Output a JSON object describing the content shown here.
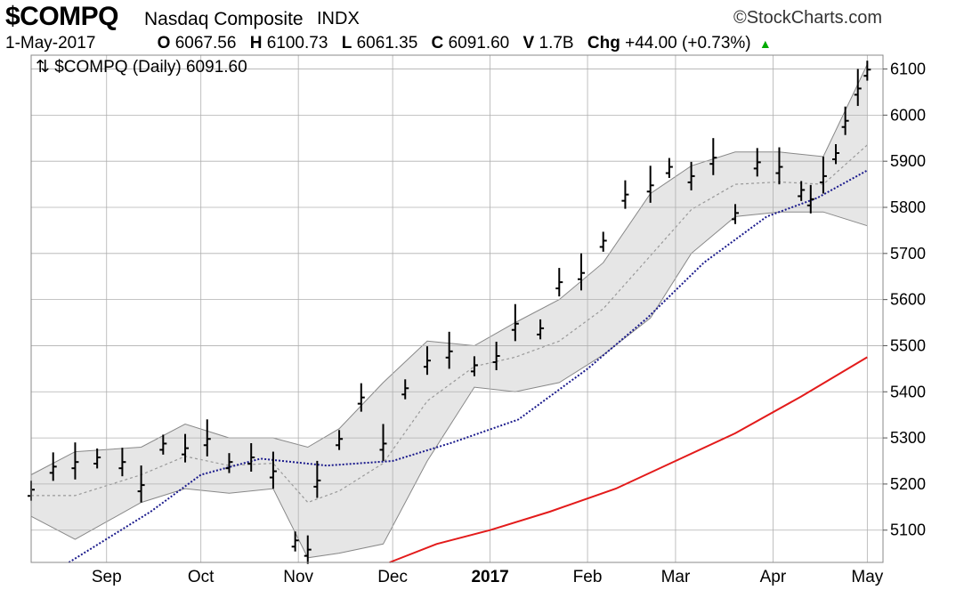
{
  "header": {
    "symbol": "$COMPQ",
    "name": "Nasdaq Composite",
    "exchange": "INDX",
    "brand": "©StockCharts.com",
    "date": "1-May-2017",
    "open_label": "O",
    "open": "6067.56",
    "high_label": "H",
    "high": "6100.73",
    "low_label": "L",
    "low": "6061.35",
    "close_label": "C",
    "close": "6091.60",
    "volume_label": "V",
    "volume": "1.7B",
    "change_label": "Chg",
    "change": "+44.00 (+0.73%)",
    "change_arrow": "▲"
  },
  "colors": {
    "price_bars": "#000000",
    "bands": "#888888",
    "band_fill": "#e6e6e6",
    "ma50": "#1a1a8c",
    "ma200": "#e31b1b",
    "grid": "#b0b0b0",
    "up_arrow": "#00aa00"
  },
  "chart_data": {
    "type": "line",
    "title": "$COMPQ (Daily) 6091.60",
    "legend_label": "$COMPQ (Daily) 6091.60",
    "ylim": [
      5030,
      6130
    ],
    "yticks": [
      5100,
      5200,
      5300,
      5400,
      5500,
      5600,
      5700,
      5800,
      5900,
      6000,
      6100
    ],
    "xlabels": [
      {
        "label": "Sep",
        "date": "2016-09-01"
      },
      {
        "label": "Oct",
        "date": "2016-10-01"
      },
      {
        "label": "Nov",
        "date": "2016-11-01"
      },
      {
        "label": "Dec",
        "date": "2016-12-01"
      },
      {
        "label": "2017",
        "date": "2017-01-01",
        "bold": true
      },
      {
        "label": "Feb",
        "date": "2017-02-01"
      },
      {
        "label": "Mar",
        "date": "2017-03-01"
      },
      {
        "label": "Apr",
        "date": "2017-04-01"
      },
      {
        "label": "May",
        "date": "2017-05-01"
      }
    ],
    "xrange": [
      "2016-08-08",
      "2017-05-06"
    ],
    "price_series": {
      "name": "$COMPQ",
      "x": [
        "2016-08-08",
        "2016-08-15",
        "2016-08-22",
        "2016-08-29",
        "2016-09-06",
        "2016-09-12",
        "2016-09-19",
        "2016-09-26",
        "2016-10-03",
        "2016-10-10",
        "2016-10-17",
        "2016-10-24",
        "2016-10-31",
        "2016-11-04",
        "2016-11-07",
        "2016-11-14",
        "2016-11-21",
        "2016-11-28",
        "2016-12-05",
        "2016-12-12",
        "2016-12-19",
        "2016-12-27",
        "2017-01-03",
        "2017-01-09",
        "2017-01-17",
        "2017-01-23",
        "2017-01-30",
        "2017-02-06",
        "2017-02-13",
        "2017-02-21",
        "2017-02-27",
        "2017-03-06",
        "2017-03-13",
        "2017-03-20",
        "2017-03-27",
        "2017-04-03",
        "2017-04-10",
        "2017-04-13",
        "2017-04-17",
        "2017-04-21",
        "2017-04-24",
        "2017-04-28",
        "2017-05-01"
      ],
      "values": [
        5180,
        5230,
        5240,
        5250,
        5240,
        5190,
        5280,
        5270,
        5290,
        5240,
        5250,
        5220,
        5070,
        5050,
        5200,
        5290,
        5380,
        5280,
        5400,
        5460,
        5480,
        5450,
        5470,
        5540,
        5530,
        5630,
        5650,
        5720,
        5820,
        5840,
        5880,
        5860,
        5900,
        5780,
        5890,
        5880,
        5830,
        5810,
        5860,
        5910,
        5980,
        6050,
        6091
      ]
    },
    "bands_upper": {
      "name": "Bollinger upper",
      "x": [
        "2016-08-08",
        "2016-08-22",
        "2016-09-12",
        "2016-09-26",
        "2016-10-10",
        "2016-10-24",
        "2016-11-04",
        "2016-11-14",
        "2016-11-28",
        "2016-12-12",
        "2016-12-27",
        "2017-01-09",
        "2017-01-23",
        "2017-02-06",
        "2017-02-21",
        "2017-03-06",
        "2017-03-20",
        "2017-04-03",
        "2017-04-17",
        "2017-05-01"
      ],
      "values": [
        5220,
        5270,
        5280,
        5330,
        5300,
        5300,
        5280,
        5320,
        5420,
        5510,
        5500,
        5550,
        5600,
        5680,
        5830,
        5890,
        5920,
        5920,
        5910,
        6110
      ]
    },
    "bands_lower": {
      "name": "Bollinger lower",
      "x": [
        "2016-08-08",
        "2016-08-22",
        "2016-09-12",
        "2016-09-26",
        "2016-10-10",
        "2016-10-24",
        "2016-11-04",
        "2016-11-14",
        "2016-11-28",
        "2016-12-12",
        "2016-12-27",
        "2017-01-09",
        "2017-01-23",
        "2017-02-06",
        "2017-02-21",
        "2017-03-06",
        "2017-03-20",
        "2017-04-03",
        "2017-04-17",
        "2017-05-01"
      ],
      "values": [
        5130,
        5080,
        5160,
        5190,
        5180,
        5190,
        5040,
        5050,
        5070,
        5250,
        5410,
        5400,
        5420,
        5480,
        5560,
        5700,
        5780,
        5790,
        5790,
        5760
      ]
    },
    "ma50": {
      "name": "50-day MA",
      "x": [
        "2016-08-20",
        "2016-09-15",
        "2016-10-01",
        "2016-10-20",
        "2016-11-10",
        "2016-12-01",
        "2016-12-20",
        "2017-01-10",
        "2017-02-01",
        "2017-02-20",
        "2017-03-10",
        "2017-03-30",
        "2017-04-15",
        "2017-05-01"
      ],
      "values": [
        5030,
        5140,
        5220,
        5255,
        5240,
        5250,
        5290,
        5340,
        5450,
        5560,
        5680,
        5780,
        5820,
        5880
      ]
    },
    "ma200": {
      "name": "200-day MA",
      "x": [
        "2016-11-30",
        "2016-12-15",
        "2017-01-01",
        "2017-01-20",
        "2017-02-10",
        "2017-03-01",
        "2017-03-20",
        "2017-04-10",
        "2017-05-01"
      ],
      "values": [
        5030,
        5070,
        5100,
        5140,
        5190,
        5250,
        5310,
        5390,
        5475
      ]
    }
  }
}
